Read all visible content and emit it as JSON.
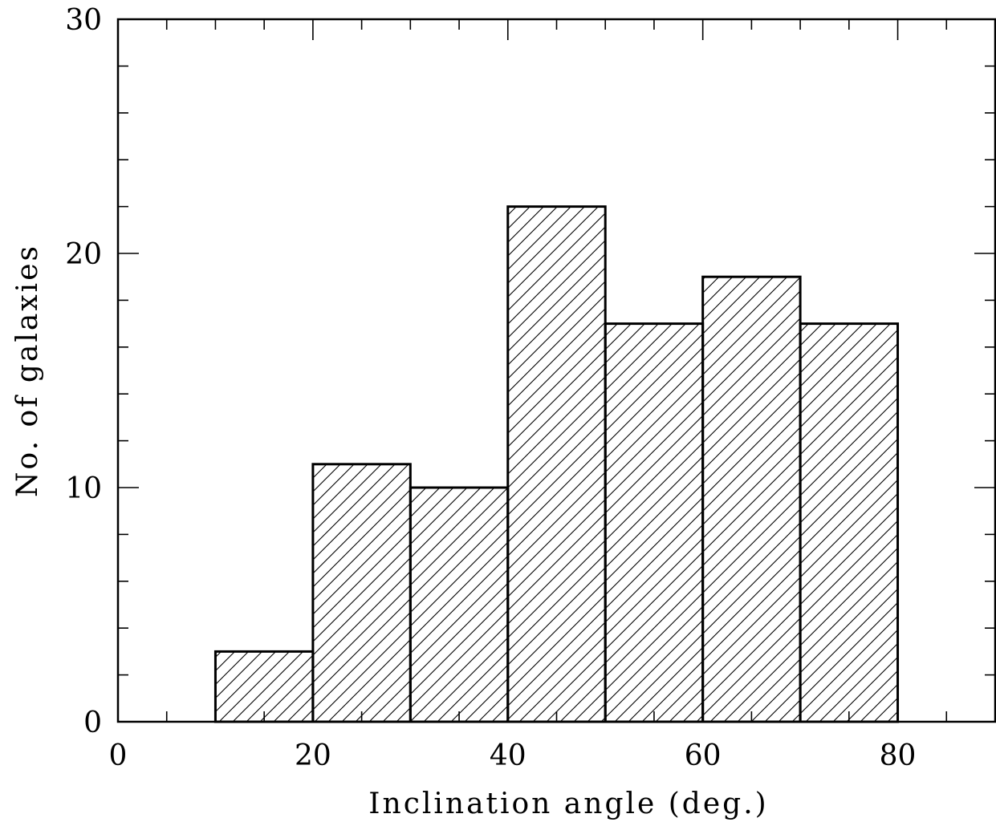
{
  "chart_data": {
    "type": "bar",
    "subtype": "histogram",
    "bins": [
      {
        "x0": 0,
        "x1": 10,
        "count": 0
      },
      {
        "x0": 10,
        "x1": 20,
        "count": 3
      },
      {
        "x0": 20,
        "x1": 30,
        "count": 11
      },
      {
        "x0": 30,
        "x1": 40,
        "count": 10
      },
      {
        "x0": 40,
        "x1": 50,
        "count": 22
      },
      {
        "x0": 50,
        "x1": 60,
        "count": 17
      },
      {
        "x0": 60,
        "x1": 70,
        "count": 19
      },
      {
        "x0": 70,
        "x1": 80,
        "count": 17
      },
      {
        "x0": 80,
        "x1": 90,
        "count": 0
      }
    ],
    "title": "",
    "xlabel": "Inclination angle (deg.)",
    "ylabel": "No. of galaxies",
    "xlim": [
      0,
      90
    ],
    "ylim": [
      0,
      30
    ],
    "x_ticks_major": [
      0,
      20,
      40,
      60,
      80
    ],
    "x_ticks_minor_step": 5,
    "y_ticks_major": [
      0,
      10,
      20,
      30
    ],
    "y_ticks_minor_step": 2,
    "fill_style": "diagonal-hatch",
    "grid": false,
    "legend": "none",
    "colors": {
      "line": "#000000",
      "background": "#ffffff"
    }
  }
}
